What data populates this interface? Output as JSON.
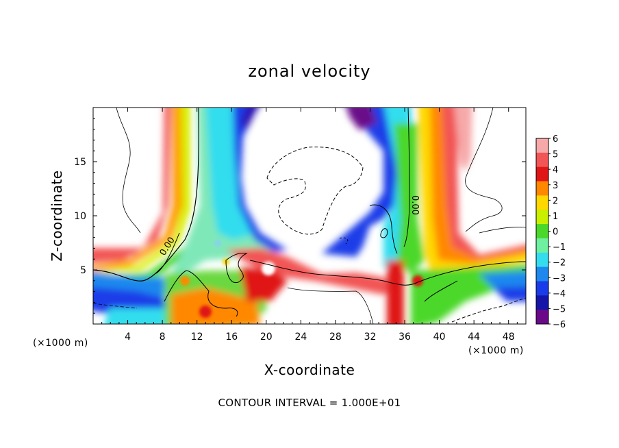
{
  "chart_data": {
    "type": "heatmap",
    "title": "zonal velocity",
    "xlabel": "X-coordinate",
    "ylabel": "Z-coordinate",
    "x_unit_left": "(×1000 m)",
    "x_unit_right": "(×1000 m)",
    "footer": "CONTOUR INTERVAL = 1.000E+01",
    "x_range": [
      0,
      50
    ],
    "y_range": [
      0,
      20
    ],
    "x_ticks": [
      4,
      8,
      12,
      16,
      20,
      24,
      28,
      32,
      36,
      40,
      44,
      48
    ],
    "y_ticks": [
      5,
      10,
      15
    ],
    "colorbar": {
      "levels": [
        6,
        5,
        4,
        3,
        2,
        1,
        0,
        -1,
        -2,
        -3,
        -4,
        -5,
        -6
      ],
      "labels": [
        "6",
        "5",
        "4",
        "3",
        "2",
        "1",
        "0",
        "−1",
        "−2",
        "−3",
        "−4",
        "−5",
        "−6"
      ],
      "colors": [
        "#f7a9a9",
        "#f25555",
        "#e01515",
        "#ff8800",
        "#ffd800",
        "#c8f000",
        "#4bd82a",
        "#6ef0a0",
        "#33ddee",
        "#1e88ee",
        "#1a3ce8",
        "#1515a8",
        "#6a0a88"
      ]
    },
    "contour_labels": [
      "0.00",
      "0.00"
    ]
  }
}
